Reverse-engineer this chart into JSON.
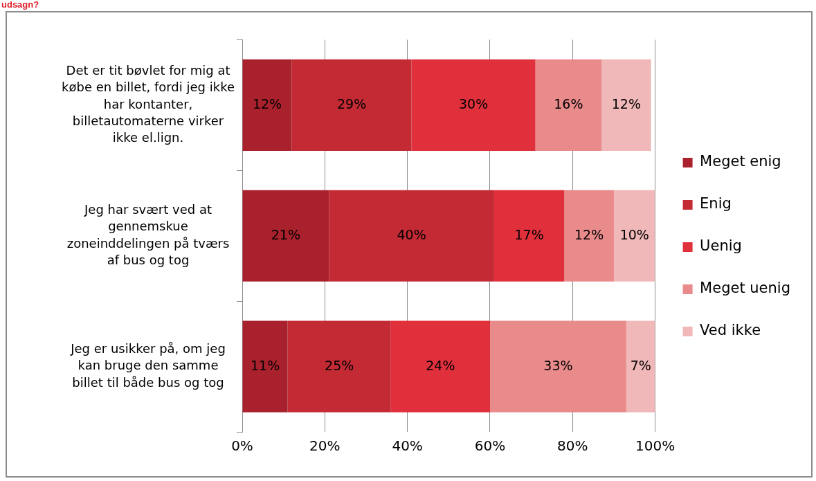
{
  "chart_data": {
    "type": "bar",
    "orientation": "horizontal",
    "stacked": true,
    "title": "udsagn?",
    "categories": [
      "Det er tit bøvlet for mig at købe en billet, fordi jeg ikke har kontanter, billetautomaterne virker ikke el.lign.",
      "Jeg har svært ved at gennemskue zoneinddelingen på tværs af bus og tog",
      "Jeg er usikker på, om jeg kan bruge den samme billet til både bus og tog"
    ],
    "series": [
      {
        "name": "Meget enig",
        "color": "#a8212c",
        "values": [
          12,
          21,
          11
        ],
        "value_labels": [
          "12%",
          "21%",
          "11%"
        ]
      },
      {
        "name": "Enig",
        "color": "#c42a34",
        "values": [
          29,
          40,
          25
        ],
        "value_labels": [
          "29%",
          "40%",
          "25%"
        ]
      },
      {
        "name": "Uenig",
        "color": "#e0303c",
        "values": [
          30,
          17,
          24
        ],
        "value_labels": [
          "30%",
          "17%",
          "24%"
        ]
      },
      {
        "name": "Meget uenig",
        "color": "#e98a8b",
        "values": [
          16,
          12,
          33
        ],
        "value_labels": [
          "16%",
          "12%",
          "33%"
        ]
      },
      {
        "name": "Ved ikke",
        "color": "#f0b8b8",
        "values": [
          12,
          10,
          7
        ],
        "value_labels": [
          "12%",
          "10%",
          "7%"
        ]
      }
    ],
    "xlim": [
      0,
      100
    ],
    "xticks": [
      {
        "value": 0,
        "label": "0%"
      },
      {
        "value": 20,
        "label": "20%"
      },
      {
        "value": 40,
        "label": "40%"
      },
      {
        "value": 60,
        "label": "60%"
      },
      {
        "value": 80,
        "label": "80%"
      },
      {
        "value": 100,
        "label": "100%"
      }
    ],
    "grid": "x",
    "legend": "right"
  }
}
